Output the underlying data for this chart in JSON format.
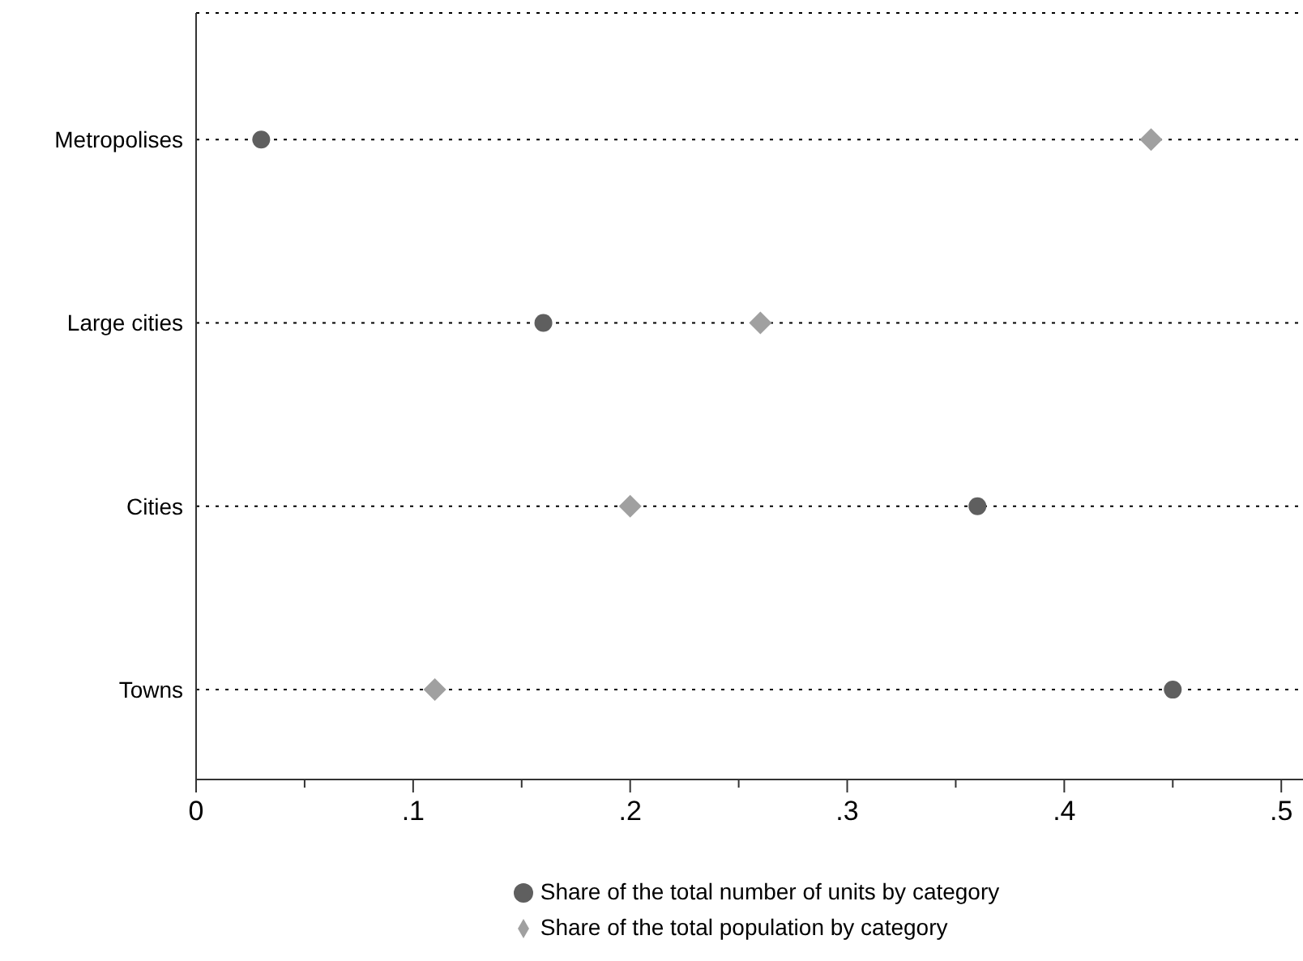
{
  "chart_data": {
    "type": "scatter",
    "orientation": "horizontal",
    "categories": [
      "Metropolises",
      "Large cities",
      "Cities",
      "Towns"
    ],
    "series": [
      {
        "name": "Share of the total number of units by category",
        "color": "#5f5f5f",
        "marker": "circle",
        "values": [
          0.03,
          0.16,
          0.36,
          0.45
        ]
      },
      {
        "name": "Share of the total population by category",
        "color": "#a0a0a0",
        "marker": "diamond",
        "values": [
          0.44,
          0.26,
          0.2,
          0.11
        ]
      }
    ],
    "xlim": [
      0,
      0.51
    ],
    "xticks": [
      0,
      {
        "value": 0.05,
        "label": null
      },
      {
        "value": 0.1,
        "label": ".1"
      },
      {
        "value": 0.15,
        "label": null
      },
      {
        "value": 0.2,
        "label": ".2"
      },
      {
        "value": 0.25,
        "label": null
      },
      {
        "value": 0.3,
        "label": ".3"
      },
      {
        "value": 0.35,
        "label": null
      },
      {
        "value": 0.4,
        "label": ".4"
      },
      {
        "value": 0.45,
        "label": null
      },
      {
        "value": 0.5,
        "label": ".5"
      }
    ],
    "grid": "y",
    "line_style": "dotted",
    "legend": "bottom"
  }
}
